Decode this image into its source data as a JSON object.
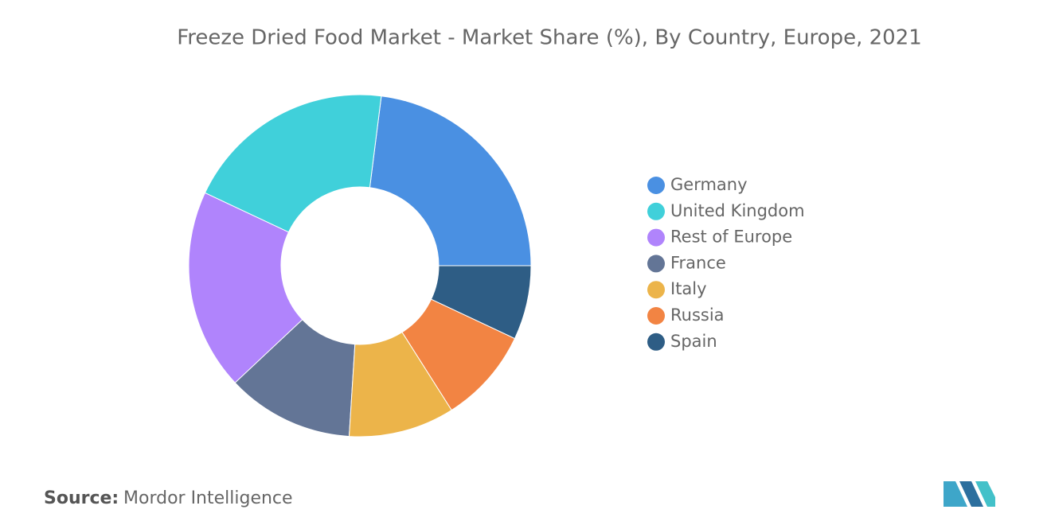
{
  "chart_data": {
    "type": "donut",
    "title": "Freeze Dried Food Market - Market Share (%), By Country, Europe, 2021",
    "categories": [
      "Germany",
      "United Kingdom",
      "Rest of Europe",
      "France",
      "Italy",
      "Russia",
      "Spain"
    ],
    "values": [
      23,
      20,
      19,
      12,
      10,
      9,
      7
    ],
    "colors": [
      "#4a90e2",
      "#40d0da",
      "#b084fc",
      "#637596",
      "#ecb44a",
      "#f28443",
      "#2e5d85"
    ],
    "source_label": "Source:",
    "source": "Mordor Intelligence"
  }
}
